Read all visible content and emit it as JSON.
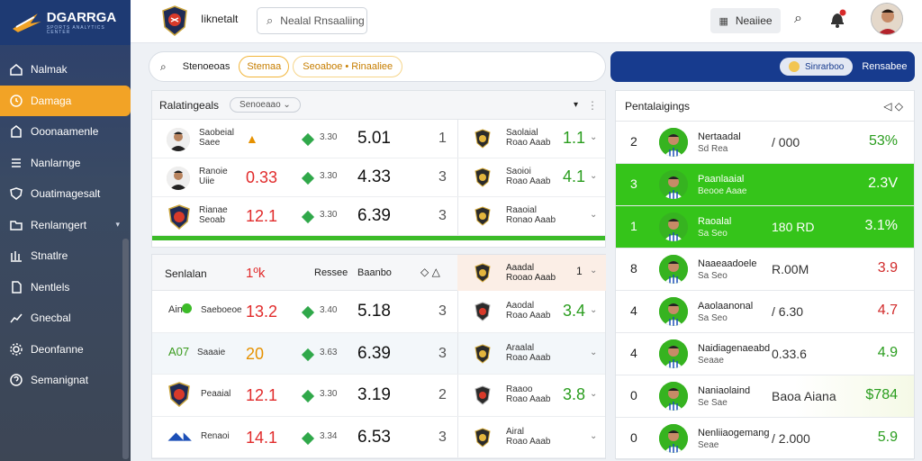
{
  "app": {
    "logo_text": "DGARRGA",
    "logo_sub": "SPORTS ANALYTICS CENTER"
  },
  "sidebar": {
    "items": [
      {
        "label": "Nalmak",
        "icon": "home-icon"
      },
      {
        "label": "Damaga",
        "icon": "clock-icon",
        "active": true
      },
      {
        "label": "Ooonaamenle",
        "icon": "building-icon"
      },
      {
        "label": "Nanlarnge",
        "icon": "list-icon"
      },
      {
        "label": "Ouatimagesalt",
        "icon": "shield-icon"
      },
      {
        "label": "Renlamgert",
        "icon": "folder-icon",
        "caret": true
      },
      {
        "label": "Stnatlre",
        "icon": "library-icon"
      },
      {
        "label": "Nentlels",
        "icon": "document-icon"
      },
      {
        "label": "Gnecbal",
        "icon": "chart-icon"
      },
      {
        "label": "Deonfanne",
        "icon": "gear-icon"
      },
      {
        "label": "Semanignat",
        "icon": "help-icon"
      }
    ]
  },
  "topbar": {
    "title": "Iiknetalt",
    "search_placeholder": "Nealal Rnsaaliing",
    "notice_label": "Neaiiee"
  },
  "filterbar": {
    "label": "Stenoeoas",
    "pill1": "Stemaa",
    "pill2": "Seoaboe • Rinaaliee"
  },
  "bluebar": {
    "pill": "Sinrarboo",
    "label": "Rensabee"
  },
  "panel_a": {
    "title": "Ralatingeals",
    "select": "Senoeaao",
    "rows": [
      {
        "name": [
          "Saobeial",
          "Saee"
        ],
        "val": "",
        "odd": "3.30",
        "big": "5.01",
        "num": "1",
        "rname": [
          "Saolaial",
          "Roao Aaab"
        ],
        "rval": "1.1"
      },
      {
        "name": [
          "Ranoie",
          "Uiie"
        ],
        "val": "0.33",
        "odd": "3.30",
        "big": "4.33",
        "num": "3",
        "rname": [
          "Saoioi",
          "Roao Aaab"
        ],
        "rval": "4.1"
      },
      {
        "name": [
          "Rianae",
          "Seoab"
        ],
        "val": "12.1",
        "odd": "3.30",
        "big": "6.39",
        "num": "3",
        "rname": [
          "Raaoial",
          "Ronao Aaab"
        ],
        "rval": ""
      }
    ]
  },
  "panel_b": {
    "head_left": "Senlalan",
    "head_val": "1ºk",
    "head_mid": "Ressee",
    "head_mid2": "Baanbo",
    "head_rname": [
      "Aaadal",
      "Rooao Aaab"
    ],
    "head_rnum": "1",
    "rows": [
      {
        "name": "Saeboeoe",
        "pre": "Ain",
        "val": "13.2",
        "odd": "3.40",
        "big": "5.18",
        "num": "3",
        "rname": [
          "Aaodal",
          "Roao Aaab"
        ],
        "rval": "3.4"
      },
      {
        "name": "Saaaie",
        "pre": "A07",
        "val": "20",
        "odd": "3.63",
        "big": "6.39",
        "num": "3",
        "rname": [
          "Araalal",
          "Roao Aaab"
        ],
        "rval": ""
      },
      {
        "name": "Peaaial",
        "pre": "",
        "val": "12.1",
        "odd": "3.30",
        "big": "3.19",
        "num": "2",
        "rname": [
          "Raaoo",
          "Roao Aaab"
        ],
        "rval": "3.8"
      },
      {
        "name": "Renaoi",
        "pre": "",
        "val": "14.1",
        "odd": "3.34",
        "big": "6.53",
        "num": "3",
        "rname": [
          "Airal",
          "Roao Aaab"
        ],
        "rval": ""
      }
    ]
  },
  "panel_r": {
    "title": "Pentalaigings",
    "rows": [
      {
        "rank": "2",
        "name": "Nertaadal",
        "sub": "Sd Rea",
        "mid": "/ 000",
        "val": "53%",
        "style": "white"
      },
      {
        "rank": "3",
        "name": "Paanlaaial",
        "sub": "Beooe Aaae",
        "mid": "",
        "val": "2.3V",
        "style": "green"
      },
      {
        "rank": "1",
        "name": "Raoalal",
        "sub": "Sa Seo",
        "mid": "180 RD",
        "val": "3.1%",
        "style": "green"
      },
      {
        "rank": "8",
        "name": "Naaeaadoele",
        "sub": "Sa Seo",
        "mid": "R.00M",
        "val": "3.9",
        "style": "white-red"
      },
      {
        "rank": "4",
        "name": "Aaolaanonal",
        "sub": "Sa Seo",
        "mid": "/ 6.30",
        "val": "4.7",
        "style": "white-red"
      },
      {
        "rank": "4",
        "name": "Naidiagenaeabd",
        "sub": "Seaae",
        "mid": "0.33.6",
        "val": "4.9",
        "style": "white"
      },
      {
        "rank": "0",
        "name": "Naniaolaind",
        "sub": "Se Sae",
        "mid": "Baoa Aiana",
        "val": "$784",
        "style": "lg"
      },
      {
        "rank": "0",
        "name": "Nenliiaogemang",
        "sub": "Seae",
        "mid": "/ 2.000",
        "val": "5.9",
        "style": "white"
      }
    ]
  },
  "colors": {
    "accent": "#f2a326",
    "green": "#35c41a",
    "blue": "#173b8e",
    "red": "#e12b2b"
  }
}
